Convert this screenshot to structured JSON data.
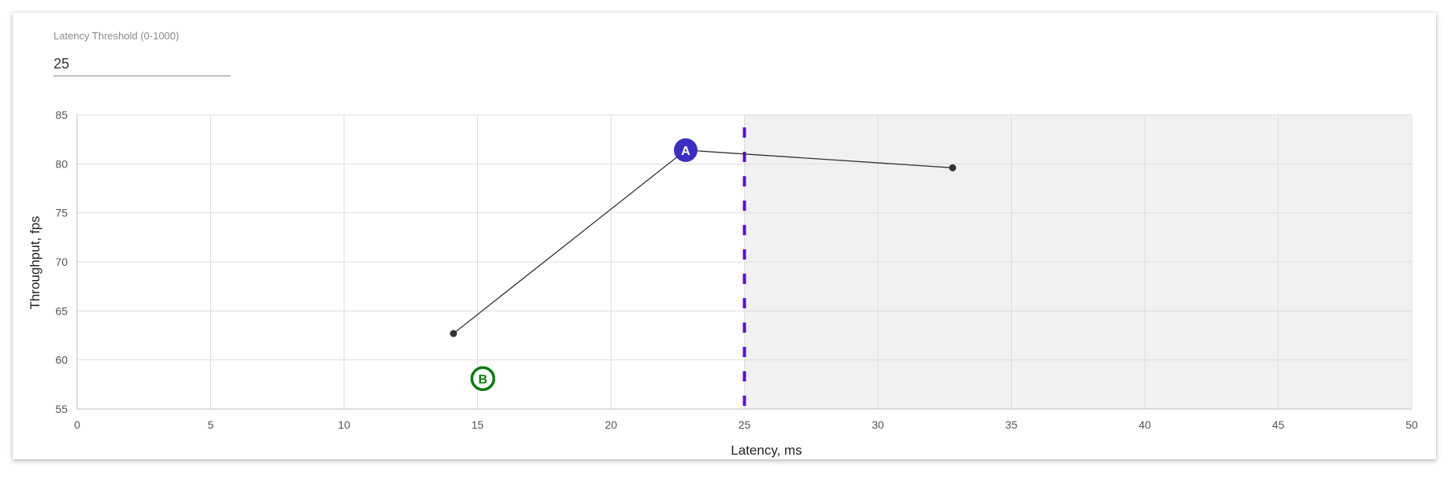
{
  "controls": {
    "threshold_label": "Latency Threshold (0-1000)",
    "threshold_value": "25"
  },
  "chart_data": {
    "type": "line",
    "xlabel": "Latency, ms",
    "ylabel": "Throughput, fps",
    "xlim": [
      0,
      50
    ],
    "ylim": [
      55,
      85
    ],
    "xticks": [
      0,
      5,
      10,
      15,
      20,
      25,
      30,
      35,
      40,
      45,
      50
    ],
    "yticks": [
      55,
      60,
      65,
      70,
      75,
      80,
      85
    ],
    "grid": true,
    "threshold": 25,
    "threshold_color": "#5b10d1",
    "shaded_region": "right-of-threshold",
    "shade_color": "#f1f1f1",
    "series": [
      {
        "color": "#333333",
        "points": [
          {
            "x": 14.1,
            "y": 62.7
          },
          {
            "x": 22.8,
            "y": 81.4
          },
          {
            "x": 32.8,
            "y": 79.6
          }
        ]
      }
    ],
    "markers": [
      {
        "label": "A",
        "x": 22.8,
        "y": 81.4,
        "style": "filled",
        "color": "#3b2fc0"
      },
      {
        "label": "B",
        "x": 15.2,
        "y": 58.1,
        "style": "outline",
        "color": "#0f7a0f"
      }
    ]
  }
}
